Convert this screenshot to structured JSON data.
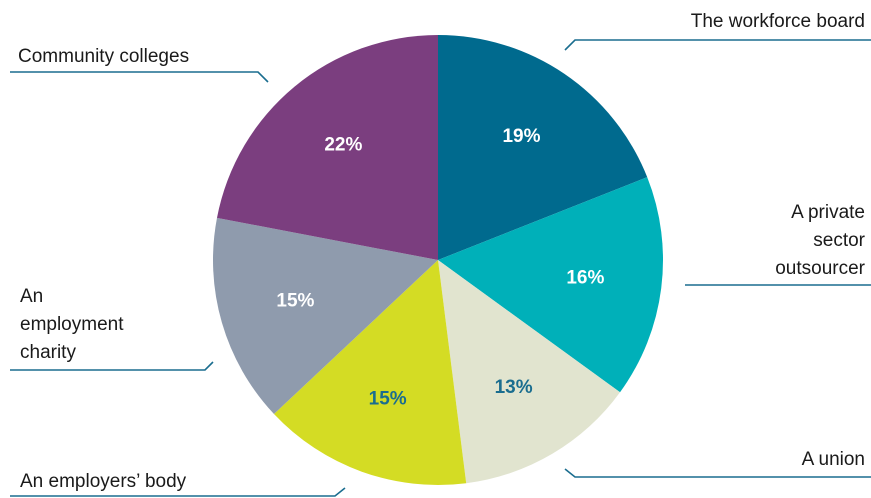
{
  "chart_data": {
    "type": "pie",
    "categories": [
      "The workforce board",
      "A private sector outsourcer",
      "A union",
      "An employers’ body",
      "An employment charity",
      "Community colleges"
    ],
    "values": [
      19,
      16,
      13,
      15,
      15,
      22
    ],
    "value_labels": [
      "19%",
      "16%",
      "13%",
      "15%",
      "15%",
      "22%"
    ],
    "colors": [
      "#006a8e",
      "#00b0b9",
      "#e1e4cf",
      "#d4dc24",
      "#8f9bad",
      "#7b3e7f"
    ],
    "label_colors": [
      "#ffffff",
      "#ffffff",
      "#1a6d8f",
      "#1a6d8f",
      "#ffffff",
      "#ffffff"
    ]
  }
}
